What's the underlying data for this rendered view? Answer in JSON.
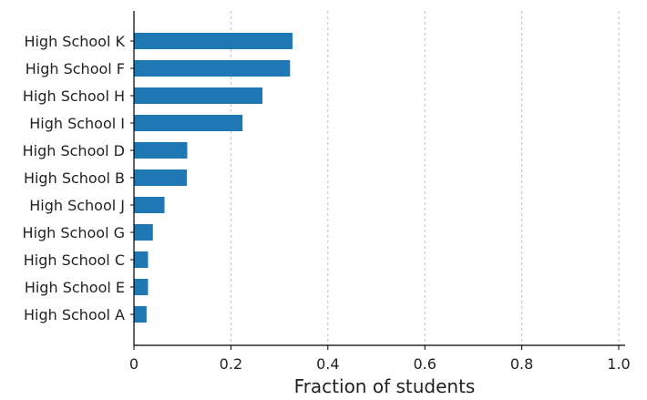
{
  "chart_data": {
    "type": "bar",
    "orientation": "horizontal",
    "title": "",
    "xlabel": "Fraction of students",
    "ylabel": "",
    "xlim": [
      0,
      1.0
    ],
    "xticks": [
      "0",
      "0.2",
      "0.4",
      "0.6",
      "0.8",
      "1.0"
    ],
    "grid": "x-dashed",
    "bar_color": "#1f77b4",
    "categories": [
      "High School K",
      "High School F",
      "High School H",
      "High School I",
      "High School D",
      "High School B",
      "High School J",
      "High School G",
      "High School C",
      "High School E",
      "High School A"
    ],
    "values": [
      0.327,
      0.322,
      0.265,
      0.224,
      0.11,
      0.109,
      0.063,
      0.039,
      0.029,
      0.029,
      0.026
    ]
  }
}
